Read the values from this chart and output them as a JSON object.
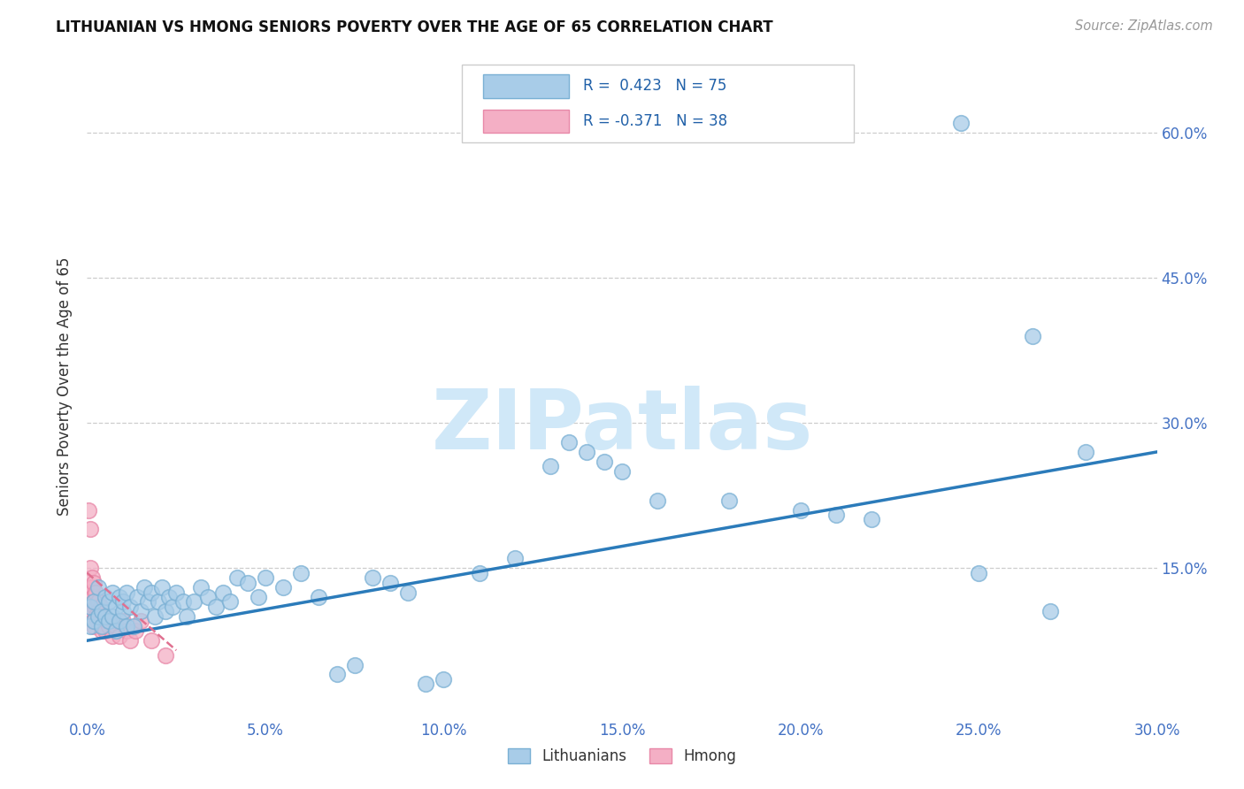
{
  "title": "LITHUANIAN VS HMONG SENIORS POVERTY OVER THE AGE OF 65 CORRELATION CHART",
  "source": "Source: ZipAtlas.com",
  "ylabel": "Seniors Poverty Over the Age of 65",
  "xlim": [
    0.0,
    0.3
  ],
  "ylim": [
    -0.005,
    0.68
  ],
  "xtick_vals": [
    0.0,
    0.05,
    0.1,
    0.15,
    0.2,
    0.25,
    0.3
  ],
  "xtick_labels": [
    "0.0%",
    "5.0%",
    "10.0%",
    "15.0%",
    "20.0%",
    "25.0%",
    "30.0%"
  ],
  "ytick_vals": [
    0.15,
    0.3,
    0.45,
    0.6
  ],
  "ytick_labels": [
    "15.0%",
    "30.0%",
    "45.0%",
    "60.0%"
  ],
  "R_lith": 0.423,
  "N_lith": 75,
  "R_hmong": -0.371,
  "N_hmong": 38,
  "lith_color": "#a8cce8",
  "hmong_color": "#f4afc5",
  "lith_edge_color": "#7ab0d4",
  "hmong_edge_color": "#e888a8",
  "lith_line_color": "#2b7bba",
  "hmong_line_color": "#e07090",
  "lith_x": [
    0.001,
    0.001,
    0.002,
    0.002,
    0.003,
    0.003,
    0.004,
    0.004,
    0.005,
    0.005,
    0.006,
    0.006,
    0.007,
    0.007,
    0.008,
    0.008,
    0.009,
    0.009,
    0.01,
    0.01,
    0.011,
    0.011,
    0.012,
    0.013,
    0.014,
    0.015,
    0.016,
    0.017,
    0.018,
    0.019,
    0.02,
    0.021,
    0.022,
    0.023,
    0.024,
    0.025,
    0.027,
    0.028,
    0.03,
    0.032,
    0.034,
    0.036,
    0.038,
    0.04,
    0.042,
    0.045,
    0.048,
    0.05,
    0.055,
    0.06,
    0.065,
    0.07,
    0.075,
    0.08,
    0.085,
    0.09,
    0.095,
    0.1,
    0.11,
    0.12,
    0.13,
    0.14,
    0.15,
    0.16,
    0.18,
    0.2,
    0.135,
    0.145,
    0.21,
    0.22,
    0.245,
    0.25,
    0.265,
    0.27,
    0.28
  ],
  "lith_y": [
    0.09,
    0.11,
    0.095,
    0.115,
    0.1,
    0.13,
    0.105,
    0.09,
    0.1,
    0.12,
    0.095,
    0.115,
    0.1,
    0.125,
    0.085,
    0.11,
    0.095,
    0.12,
    0.105,
    0.115,
    0.09,
    0.125,
    0.11,
    0.09,
    0.12,
    0.105,
    0.13,
    0.115,
    0.125,
    0.1,
    0.115,
    0.13,
    0.105,
    0.12,
    0.11,
    0.125,
    0.115,
    0.1,
    0.115,
    0.13,
    0.12,
    0.11,
    0.125,
    0.115,
    0.14,
    0.135,
    0.12,
    0.14,
    0.13,
    0.145,
    0.12,
    0.04,
    0.05,
    0.14,
    0.135,
    0.125,
    0.03,
    0.035,
    0.145,
    0.16,
    0.255,
    0.27,
    0.25,
    0.22,
    0.22,
    0.21,
    0.28,
    0.26,
    0.205,
    0.2,
    0.61,
    0.145,
    0.39,
    0.105,
    0.27
  ],
  "hmong_x": [
    0.0005,
    0.0007,
    0.0008,
    0.001,
    0.001,
    0.0012,
    0.0013,
    0.0014,
    0.0015,
    0.0016,
    0.0017,
    0.0018,
    0.002,
    0.002,
    0.0022,
    0.0024,
    0.0025,
    0.0028,
    0.003,
    0.0032,
    0.0035,
    0.0038,
    0.004,
    0.0043,
    0.0047,
    0.005,
    0.0055,
    0.006,
    0.007,
    0.008,
    0.009,
    0.01,
    0.011,
    0.012,
    0.0135,
    0.015,
    0.018,
    0.022
  ],
  "hmong_y": [
    0.21,
    0.13,
    0.19,
    0.11,
    0.15,
    0.125,
    0.14,
    0.105,
    0.13,
    0.12,
    0.095,
    0.115,
    0.09,
    0.135,
    0.11,
    0.1,
    0.125,
    0.095,
    0.115,
    0.105,
    0.095,
    0.11,
    0.085,
    0.1,
    0.09,
    0.085,
    0.095,
    0.09,
    0.08,
    0.09,
    0.08,
    0.095,
    0.085,
    0.075,
    0.085,
    0.095,
    0.075,
    0.06
  ],
  "lith_trendline_x": [
    0.0,
    0.3
  ],
  "lith_trendline_y": [
    0.075,
    0.27
  ],
  "hmong_trendline_x": [
    0.0,
    0.025
  ],
  "hmong_trendline_y": [
    0.145,
    0.065
  ],
  "legend_R_lith_text": "R =  0.423",
  "legend_N_lith_text": "N = 75",
  "legend_R_hmong_text": "R = -0.371",
  "legend_N_hmong_text": "N = 38",
  "watermark_text": "ZIPatlas",
  "watermark_color": "#d0e8f8"
}
